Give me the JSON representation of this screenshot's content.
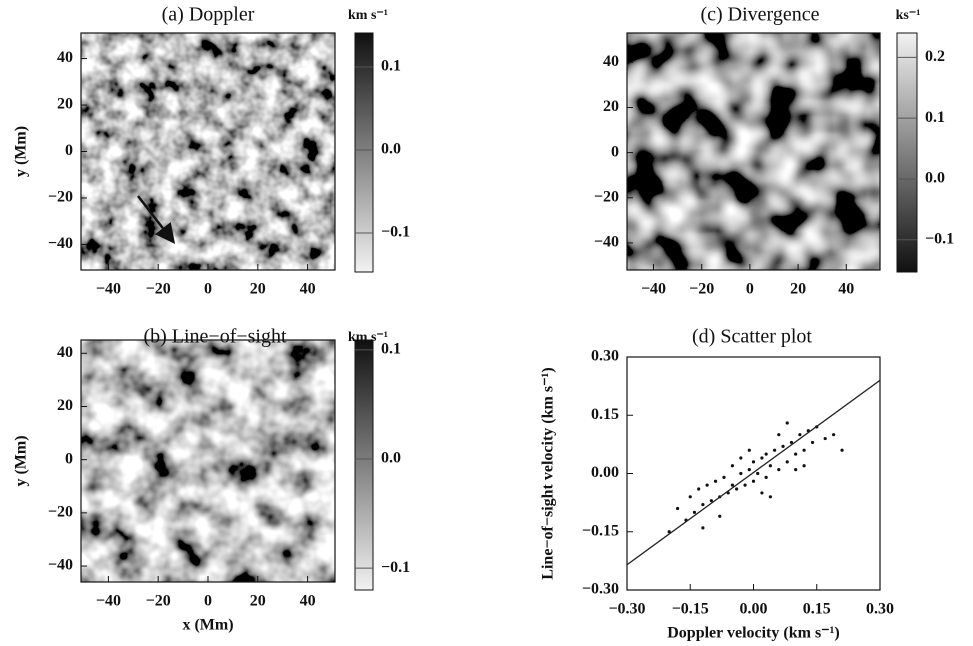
{
  "chart_data": [
    {
      "type": "image",
      "title": "(a) Doppler",
      "xlim": [
        -51,
        51
      ],
      "ylim": [
        -51,
        51
      ],
      "xticks": [
        {
          "value": -40,
          "label": "−40"
        },
        {
          "value": -20,
          "label": "−20"
        },
        0,
        20,
        40
      ],
      "yticks": [
        {
          "value": -40,
          "label": "−40"
        },
        {
          "value": -20,
          "label": "−20"
        },
        0,
        20,
        40
      ],
      "ylabel": "y (Mm)",
      "colorbar": {
        "label": "km s⁻¹",
        "lim": [
          -0.147,
          0.141
        ],
        "colors": [
          "#f2f2f2",
          "#101010"
        ],
        "ticks": [
          {
            "value": -0.1,
            "label": "−0.1"
          },
          {
            "value": 0,
            "label": "0.0"
          },
          0.1
        ]
      }
    },
    {
      "type": "image",
      "title": "(b) Line−of−sight",
      "xlim": [
        -51,
        51
      ],
      "ylim": [
        -46,
        45
      ],
      "xticks": [
        {
          "value": -40,
          "label": "−40"
        },
        {
          "value": -20,
          "label": "−20"
        },
        0,
        20,
        40
      ],
      "yticks": [
        {
          "value": -40,
          "label": "−40"
        },
        {
          "value": -20,
          "label": "−20"
        },
        0,
        20,
        40
      ],
      "xlabel": "x (Mm)",
      "ylabel": "y (Mm)",
      "colorbar": {
        "label": "km s⁻¹",
        "lim": [
          -0.12,
          0.109
        ],
        "colors": [
          "#f2f2f2",
          "#101010"
        ],
        "ticks": [
          {
            "value": -0.1,
            "label": "−0.1"
          },
          {
            "value": 0,
            "label": "0.0"
          },
          0.1
        ]
      }
    },
    {
      "type": "image",
      "title": "(c) Divergence",
      "xlim": [
        -51,
        54
      ],
      "ylim": [
        -52,
        53
      ],
      "xticks": [
        {
          "value": -40,
          "label": "−40"
        },
        {
          "value": -20,
          "label": "−20"
        },
        0,
        20,
        40
      ],
      "yticks": [
        {
          "value": -40,
          "label": "−40"
        },
        {
          "value": -20,
          "label": "−20"
        },
        0,
        20,
        40
      ],
      "colorbar": {
        "label": "ks⁻¹",
        "lim": [
          -0.153,
          0.24
        ],
        "colors": [
          "#101010",
          "#f2f2f2"
        ],
        "ticks": [
          {
            "value": -0.1,
            "label": "−0.1"
          },
          {
            "value": 0,
            "label": "0.0"
          },
          0.1,
          0.2
        ]
      }
    },
    {
      "type": "scatter",
      "title": "(d) Scatter plot",
      "xlim": [
        -0.3,
        0.3
      ],
      "ylim": [
        -0.3,
        0.3
      ],
      "xticks": [
        {
          "value": -0.3,
          "label": "−0.30"
        },
        {
          "value": -0.15,
          "label": "−0.15"
        },
        {
          "value": 0,
          "label": "0.00"
        },
        {
          "value": 0.15,
          "label": "0.15"
        },
        {
          "value": 0.3,
          "label": "0.30"
        }
      ],
      "yticks": [
        {
          "value": -0.3,
          "label": "−0.30"
        },
        {
          "value": -0.15,
          "label": "−0.15"
        },
        {
          "value": 0,
          "label": "0.00"
        },
        {
          "value": 0.15,
          "label": "0.15"
        },
        {
          "value": 0.3,
          "label": "0.30"
        }
      ],
      "xlabel": "Doppler velocity (km s⁻¹)",
      "ylabel": "Line−of−sight velocity (km s⁻¹)",
      "color": "#111111",
      "x": [
        -0.2,
        -0.18,
        -0.16,
        -0.15,
        -0.14,
        -0.13,
        -0.12,
        -0.11,
        -0.1,
        -0.09,
        -0.08,
        -0.07,
        -0.06,
        -0.05,
        -0.05,
        -0.04,
        -0.03,
        -0.02,
        -0.01,
        0.0,
        0.0,
        0.01,
        0.02,
        0.03,
        0.03,
        0.04,
        0.05,
        0.06,
        0.07,
        0.08,
        0.09,
        0.1,
        0.11,
        0.12,
        0.13,
        0.14,
        0.15,
        0.17,
        0.19,
        0.21,
        -0.08,
        -0.03,
        0.02,
        0.06,
        0.1,
        -0.12,
        0.04,
        0.08,
        -0.01,
        0.12
      ],
      "y": [
        -0.15,
        -0.09,
        -0.12,
        -0.06,
        -0.1,
        -0.04,
        -0.08,
        -0.03,
        -0.07,
        -0.02,
        -0.06,
        -0.01,
        -0.05,
        -0.03,
        0.02,
        -0.04,
        0.0,
        -0.03,
        0.01,
        -0.02,
        0.03,
        0.0,
        0.04,
        -0.01,
        0.05,
        0.02,
        0.06,
        0.01,
        0.07,
        0.03,
        0.08,
        0.05,
        0.1,
        0.06,
        0.11,
        0.08,
        0.12,
        0.09,
        0.1,
        0.06,
        -0.11,
        0.04,
        -0.05,
        0.1,
        0.01,
        -0.14,
        -0.06,
        0.13,
        0.06,
        0.02
      ],
      "fit_line": {
        "x": [
          -0.3,
          0.3
        ],
        "y": [
          -0.235,
          0.24
        ]
      }
    }
  ]
}
